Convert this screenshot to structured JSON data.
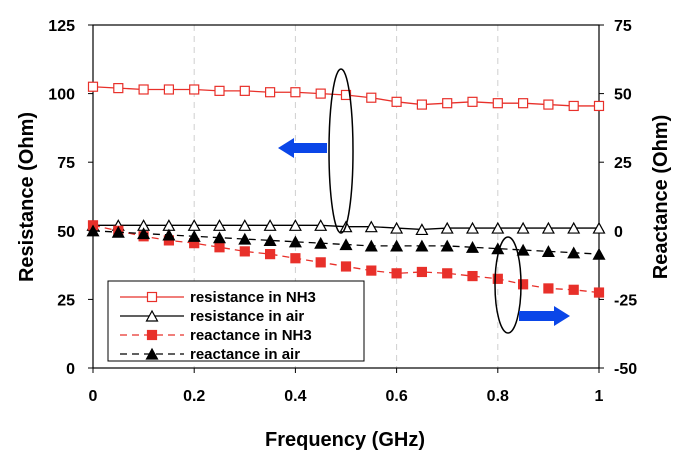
{
  "chart_data": {
    "type": "line",
    "title": "",
    "xlabel": "Frequency (GHz)",
    "ylabel_left": "Resistance (Ohm)",
    "ylabel_right": "Reactance (Ohm)",
    "xlim": [
      0,
      1
    ],
    "ylim_left": [
      0,
      125
    ],
    "ylim_right": [
      -50,
      75
    ],
    "x_ticks": [
      "0",
      "0.2",
      "0.4",
      "0.6",
      "0.8",
      "1"
    ],
    "y_ticks_left": [
      "0",
      "25",
      "50",
      "75",
      "100",
      "125"
    ],
    "y_ticks_right": [
      "-50",
      "-25",
      "0",
      "25",
      "50",
      "75"
    ],
    "grid": "vertical dashed",
    "legend_position": "bottom-left",
    "x": [
      0,
      0.05,
      0.1,
      0.15,
      0.2,
      0.25,
      0.3,
      0.35,
      0.4,
      0.45,
      0.5,
      0.55,
      0.6,
      0.65,
      0.7,
      0.75,
      0.8,
      0.85,
      0.9,
      0.95,
      1.0
    ],
    "series": [
      {
        "name": "resistance in NH3",
        "axis": "left",
        "color": "#e8302a",
        "line": "solid",
        "marker": "open-square",
        "values": [
          102.5,
          102,
          101.5,
          101.5,
          101.5,
          101,
          101,
          100.5,
          100.5,
          100,
          99.5,
          98.5,
          97,
          96,
          96.5,
          97,
          96.5,
          96.5,
          96,
          95.5,
          95.5
        ]
      },
      {
        "name": "resistance in air",
        "axis": "left",
        "color": "#000000",
        "line": "solid",
        "marker": "open-triangle",
        "values": [
          52,
          52,
          52,
          52,
          52,
          52,
          52,
          52,
          52,
          52,
          51.5,
          51.5,
          51,
          50.5,
          51,
          51,
          51,
          51,
          51,
          51,
          51
        ]
      },
      {
        "name": "reactance in NH3",
        "axis": "right",
        "color": "#e8302a",
        "line": "dashed",
        "marker": "filled-square",
        "values": [
          2,
          0,
          -2,
          -3.5,
          -4.5,
          -6,
          -7.5,
          -8.5,
          -10,
          -11.5,
          -13,
          -14.5,
          -15.5,
          -15,
          -15.5,
          -16.5,
          -17.5,
          -19.5,
          -21,
          -21.5,
          -22.5
        ]
      },
      {
        "name": "reactance in air",
        "axis": "right",
        "color": "#000000",
        "line": "dashed",
        "marker": "filled-triangle",
        "values": [
          0,
          -0.5,
          -1,
          -1.5,
          -2,
          -2.5,
          -3,
          -3.5,
          -4,
          -4.5,
          -5,
          -5.5,
          -5.5,
          -5.5,
          -5.5,
          -6,
          -6.5,
          -7,
          -7.5,
          -8,
          -8.5
        ]
      }
    ],
    "annotations": [
      {
        "type": "arrow",
        "direction": "left",
        "color": "#0a46e8",
        "meaning": "resistance curves use left axis"
      },
      {
        "type": "arrow",
        "direction": "right",
        "color": "#0a46e8",
        "meaning": "reactance curves use right axis"
      }
    ]
  }
}
